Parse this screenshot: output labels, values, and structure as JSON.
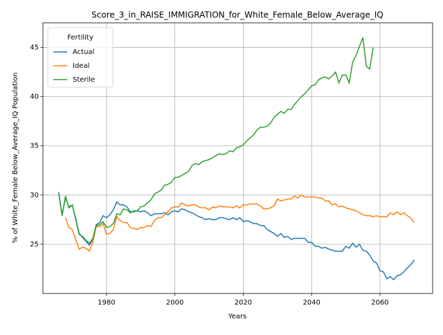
{
  "chart_data": {
    "type": "line",
    "title": "Score_3_in_RAISE_IMMIGRATION_for_White_Female_Below_Average_IQ",
    "x_label": "Years",
    "y_label": "% of White_Female Below_Average_IQ Population",
    "legend_title": "Fertility",
    "legend": "upper left",
    "grid": true,
    "xlim": [
      1961.4,
      2075.4
    ],
    "ylim": [
      20.0,
      47.5
    ],
    "xticks": [
      1980,
      2000,
      2020,
      2040,
      2060
    ],
    "yticks": [
      25,
      30,
      35,
      40,
      45
    ],
    "x": [
      1966,
      1967,
      1968,
      1969,
      1970,
      1971,
      1972,
      1973,
      1974,
      1975,
      1976,
      1977,
      1978,
      1979,
      1980,
      1981,
      1982,
      1983,
      1984,
      1985,
      1986,
      1987,
      1988,
      1989,
      1990,
      1991,
      1992,
      1993,
      1994,
      1995,
      1996,
      1997,
      1998,
      1999,
      2000,
      2001,
      2002,
      2003,
      2004,
      2005,
      2006,
      2007,
      2008,
      2009,
      2010,
      2011,
      2012,
      2013,
      2014,
      2015,
      2016,
      2017,
      2018,
      2019,
      2020,
      2021,
      2022,
      2023,
      2024,
      2025,
      2026,
      2027,
      2028,
      2029,
      2030,
      2031,
      2032,
      2033,
      2034,
      2035,
      2036,
      2037,
      2038,
      2039,
      2040,
      2041,
      2042,
      2043,
      2044,
      2045,
      2046,
      2047,
      2048,
      2049,
      2050,
      2051,
      2052,
      2053,
      2054,
      2055,
      2056,
      2057,
      2058,
      2059,
      2060,
      2061,
      2062,
      2063,
      2064,
      2065,
      2066,
      2067,
      2068,
      2069,
      2070
    ],
    "series": [
      {
        "name": "Actual",
        "color": "#1f77b4",
        "values": [
          30.3,
          28.0,
          29.7,
          28.8,
          29.0,
          27.6,
          26.1,
          25.7,
          25.3,
          24.9,
          25.5,
          27.0,
          27.2,
          27.9,
          27.7,
          28.0,
          28.5,
          29.3,
          29.0,
          29.0,
          28.8,
          28.3,
          28.3,
          28.4,
          28.3,
          28.4,
          28.2,
          27.9,
          28.1,
          28.1,
          28.1,
          28.2,
          28.0,
          28.3,
          28.4,
          28.3,
          28.6,
          28.5,
          28.3,
          28.2,
          28.0,
          27.8,
          27.7,
          27.5,
          27.6,
          27.5,
          27.5,
          27.7,
          27.7,
          27.6,
          27.5,
          27.7,
          27.5,
          27.7,
          27.3,
          27.4,
          27.3,
          27.1,
          27.1,
          26.9,
          26.9,
          26.5,
          26.3,
          26.1,
          25.8,
          26.1,
          25.7,
          25.8,
          25.5,
          25.6,
          25.6,
          25.6,
          25.6,
          25.2,
          25.2,
          24.8,
          24.8,
          24.6,
          24.7,
          24.5,
          24.4,
          24.3,
          24.3,
          24.3,
          24.8,
          24.6,
          25.1,
          24.7,
          25.0,
          24.4,
          24.3,
          23.9,
          23.3,
          23.1,
          22.3,
          22.2,
          21.5,
          21.7,
          21.4,
          21.8,
          21.9,
          22.2,
          22.6,
          22.9,
          23.4
        ]
      },
      {
        "name": "Ideal",
        "color": "#ff7f0e",
        "values": [
          null,
          null,
          27.7,
          26.7,
          26.5,
          25.5,
          24.5,
          24.7,
          24.6,
          24.3,
          25.2,
          26.8,
          26.8,
          27.1,
          26.0,
          26.1,
          26.5,
          27.8,
          27.4,
          27.2,
          27.2,
          26.7,
          26.6,
          26.5,
          26.7,
          26.7,
          26.9,
          26.8,
          27.4,
          27.7,
          27.7,
          28.0,
          28.3,
          28.7,
          28.8,
          28.8,
          29.2,
          29.0,
          28.9,
          29.0,
          29.0,
          28.8,
          28.7,
          28.7,
          28.5,
          28.8,
          28.7,
          28.9,
          28.8,
          28.8,
          28.8,
          28.7,
          28.9,
          28.7,
          29.0,
          29.0,
          29.1,
          29.1,
          29.1,
          28.9,
          28.6,
          28.6,
          28.7,
          28.9,
          29.6,
          29.4,
          29.5,
          29.6,
          29.6,
          29.9,
          29.7,
          30.0,
          29.8,
          29.8,
          29.8,
          29.8,
          29.7,
          29.7,
          29.4,
          29.4,
          29.0,
          29.1,
          28.8,
          28.9,
          28.7,
          28.6,
          28.5,
          28.4,
          28.2,
          28.0,
          27.9,
          27.9,
          27.8,
          27.9,
          27.8,
          27.8,
          27.8,
          28.2,
          28.0,
          28.3,
          28.0,
          28.2,
          27.9,
          27.7,
          27.2
        ]
      },
      {
        "name": "Sterile",
        "color": "#2ca02c",
        "values": [
          30.2,
          27.9,
          29.9,
          28.7,
          29.0,
          27.5,
          26.0,
          25.8,
          25.4,
          25.1,
          25.6,
          26.9,
          27.0,
          27.3,
          26.7,
          26.8,
          27.1,
          28.1,
          28.0,
          28.6,
          28.5,
          28.2,
          28.4,
          28.4,
          28.8,
          28.9,
          29.2,
          29.5,
          30.1,
          30.3,
          30.5,
          31.0,
          31.1,
          31.3,
          31.8,
          31.8,
          32.0,
          32.2,
          32.4,
          33.0,
          33.2,
          33.1,
          33.4,
          33.5,
          33.6,
          33.8,
          34.0,
          34.2,
          34.1,
          34.2,
          34.5,
          34.4,
          34.8,
          34.9,
          35.1,
          35.5,
          35.8,
          36.1,
          36.6,
          36.9,
          36.9,
          37.0,
          37.3,
          37.9,
          38.2,
          38.5,
          38.3,
          38.7,
          38.7,
          39.2,
          39.6,
          40.0,
          40.3,
          40.7,
          41.1,
          41.2,
          41.7,
          41.9,
          42.0,
          41.8,
          42.1,
          42.5,
          41.4,
          42.2,
          42.2,
          41.4,
          43.5,
          44.2,
          45.1,
          46.0,
          43.1,
          42.8,
          45.0,
          null,
          null,
          null,
          null,
          null,
          null,
          null,
          null,
          null,
          null,
          null,
          null
        ]
      }
    ]
  }
}
